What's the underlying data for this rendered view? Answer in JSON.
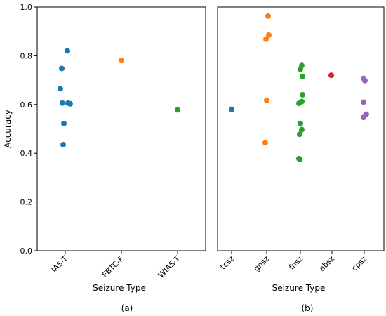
{
  "chart_data": [
    {
      "type": "scatter",
      "panel": "(a)",
      "xlabel": "Seizure Type",
      "ylabel": "Accuracy",
      "ylim": [
        0.0,
        1.0
      ],
      "yticks": [
        "0.0",
        "0.2",
        "0.4",
        "0.6",
        "0.8",
        "1.0"
      ],
      "categories": [
        "IAS-T",
        "FBTC-F",
        "WIAS-T"
      ],
      "series": [
        {
          "category": "IAS-T",
          "color": "#1f77b4",
          "values": [
            0.82,
            0.748,
            0.665,
            0.606,
            0.606,
            0.603,
            0.522,
            0.435
          ]
        },
        {
          "category": "FBTC-F",
          "color": "#ff7f0e",
          "values": [
            0.78
          ]
        },
        {
          "category": "WIAS-T",
          "color": "#2ca02c",
          "values": [
            0.578
          ]
        }
      ],
      "grid": false,
      "legend": "none"
    },
    {
      "type": "scatter",
      "panel": "(b)",
      "xlabel": "Seizure Type",
      "ylabel": "",
      "ylim": [
        0.0,
        1.0
      ],
      "categories": [
        "tcsz",
        "gnsz",
        "fnsz",
        "absz",
        "cpsz"
      ],
      "series": [
        {
          "category": "tcsz",
          "color": "#1f77b4",
          "values": [
            0.58
          ]
        },
        {
          "category": "gnsz",
          "color": "#ff7f0e",
          "values": [
            0.963,
            0.885,
            0.868,
            0.617,
            0.443
          ]
        },
        {
          "category": "fnsz",
          "color": "#2ca02c",
          "values": [
            0.76,
            0.745,
            0.715,
            0.64,
            0.612,
            0.605,
            0.522,
            0.497,
            0.478,
            0.378,
            0.375
          ]
        },
        {
          "category": "absz",
          "color": "#d62728",
          "values": [
            0.72
          ]
        },
        {
          "category": "cpsz",
          "color": "#9467bd",
          "values": [
            0.707,
            0.698,
            0.61,
            0.56,
            0.547
          ]
        }
      ],
      "grid": false,
      "legend": "none"
    }
  ]
}
